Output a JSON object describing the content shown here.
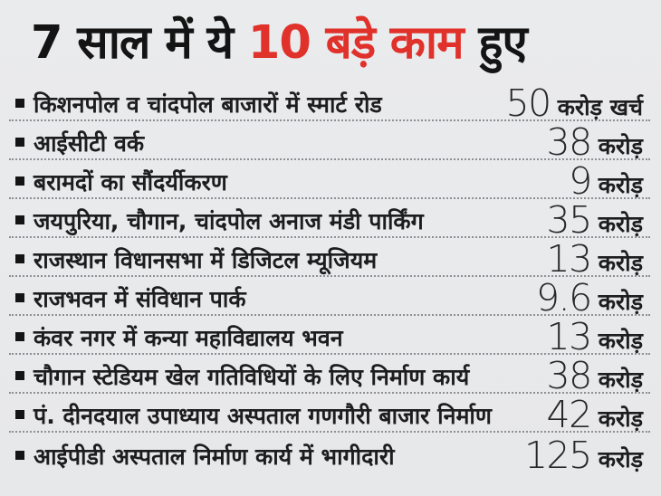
{
  "title": {
    "part1": "7 साल में ये ",
    "highlight": "10 बड़े काम",
    "part2": " हुए"
  },
  "list": {
    "items": [
      {
        "label": "किशनपोल व चांदपोल बाजारों में स्मार्ट रोड",
        "amount": "50",
        "unit": "करोड़ खर्च"
      },
      {
        "label": "आईसीटी वर्क",
        "amount": "38",
        "unit": "करोड़"
      },
      {
        "label": "बरामदों का सौंदर्यीकरण",
        "amount": "9",
        "unit": "करोड़"
      },
      {
        "label": "जयपुरिया, चौगान, चांदपोल अनाज मंडी पार्किंग",
        "amount": "35",
        "unit": "करोड़"
      },
      {
        "label": "राजस्थान विधानसभा में डिजिटल म्यूजियम",
        "amount": "13",
        "unit": "करोड़"
      },
      {
        "label": "राजभवन में संविधान पार्क",
        "amount": "9.6",
        "unit": "करोड़"
      },
      {
        "label": "कंवर नगर में कन्या महाविद्यालय भवन",
        "amount": "13",
        "unit": "करोड़"
      },
      {
        "label": "चौगान स्टेडियम खेल गतिविधियों के लिए निर्माण कार्य",
        "amount": "38",
        "unit": "करोड़"
      },
      {
        "label": "पं. दीनदयाल उपाध्याय अस्पताल गणगौरी बाजार निर्माण",
        "amount": "42",
        "unit": "करोड़"
      },
      {
        "label": "आईपीडी अस्पताल निर्माण कार्य में भागीदारी",
        "amount": "125",
        "unit": "करोड़"
      }
    ]
  },
  "colors": {
    "background": "#e9eaec",
    "text": "#1d1d1f",
    "accent_red": "#e0312a",
    "dotted_line": "#8f8f93"
  }
}
